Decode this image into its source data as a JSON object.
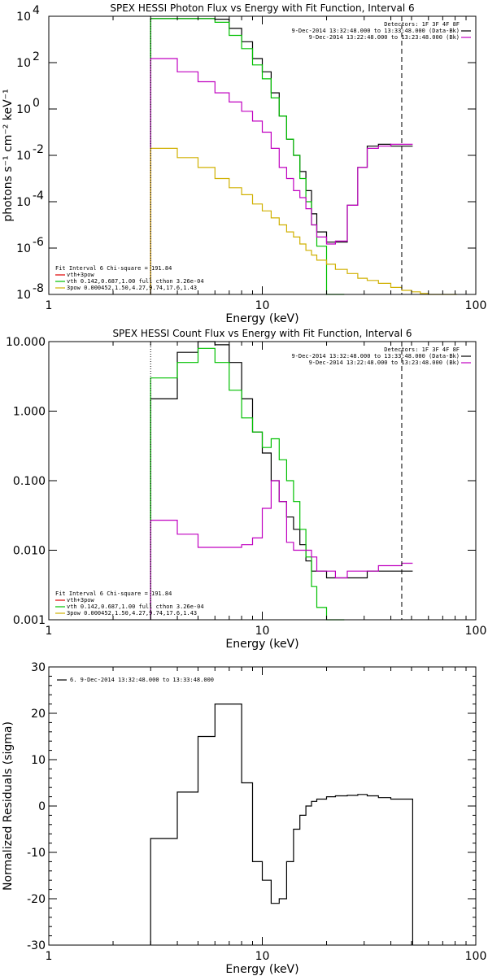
{
  "chart_data": [
    {
      "type": "line",
      "title": "SPEX HESSI Photon Flux vs Energy with Fit Function, Interval 6",
      "xlabel": "Energy (keV)",
      "ylabel": "photons s⁻¹ cm⁻² keV⁻¹",
      "xscale": "log",
      "yscale": "log",
      "xlim": [
        1,
        100
      ],
      "ylim": [
        1e-08,
        10000.0
      ],
      "xticks": [
        {
          "v": 1,
          "label": "1"
        },
        {
          "v": 10,
          "label": "10"
        },
        {
          "v": 100,
          "label": "100"
        }
      ],
      "yticks": [
        {
          "v": 1e-08,
          "base": "10",
          "exp": "-8"
        },
        {
          "v": 1e-06,
          "base": "10",
          "exp": "-6"
        },
        {
          "v": 0.0001,
          "base": "10",
          "exp": "-4"
        },
        {
          "v": 0.01,
          "base": "10",
          "exp": "-2"
        },
        {
          "v": 1,
          "base": "10",
          "exp": "0"
        },
        {
          "v": 100,
          "base": "10",
          "exp": "2"
        },
        {
          "v": 10000,
          "base": "10",
          "exp": "4"
        }
      ],
      "vlines": [
        {
          "x": 3,
          "style": "dotted",
          "color": "#000000"
        },
        {
          "x": 45,
          "style": "dashed",
          "color": "#000000"
        }
      ],
      "legend_topright": {
        "lines": [
          {
            "text": "Detectors: 1F 3F 4F 8F"
          },
          {
            "text": "9-Dec-2014 13:32:48.000 to 13:33:48.000 (Data-Bk)",
            "color": "#000000"
          },
          {
            "text": "9-Dec-2014 13:22:48.000 to 13:23:48.000 (Bk)",
            "color": "#c000c0"
          }
        ]
      },
      "legend_bottomleft": {
        "lines": [
          {
            "text": "Fit Interval  6    Chi-square = 191.84",
            "color": "#000000"
          },
          {
            "text": "vth+3pow",
            "color": "#e00000"
          },
          {
            "text": "vth 0.142,0.687,1.00  full cthon 3.26e-04",
            "color": "#00c000"
          },
          {
            "text": "3pow 0.000452,1.50,4.27,9.74,17.6,1.43",
            "color": "#d0b000"
          }
        ]
      },
      "series": [
        {
          "color": "#000000",
          "x": [
            3,
            4,
            5,
            6,
            7,
            8,
            9,
            10,
            11,
            12,
            13,
            14,
            15,
            16,
            17,
            18,
            20,
            22,
            25,
            28,
            31,
            35,
            40,
            45
          ],
          "values": [
            8000,
            8000,
            8000,
            7500,
            3000,
            800,
            150,
            40,
            5,
            0.5,
            0.05,
            0.01,
            0.002,
            0.0003,
            3e-05,
            5e-06,
            1.8e-06,
            1.8e-06,
            7e-05,
            0.003,
            0.025,
            0.03,
            0.025,
            0.025
          ]
        },
        {
          "color": "#00c000",
          "x": [
            3,
            4,
            5,
            6,
            7,
            8,
            9,
            10,
            11,
            12,
            13,
            14,
            15,
            16,
            17,
            18,
            20,
            22
          ],
          "values": [
            8000,
            8000,
            8000,
            5500,
            1500,
            400,
            80,
            20,
            3,
            0.5,
            0.05,
            0.01,
            0.001,
            0.0001,
            1e-05,
            1.2e-06,
            1e-08,
            1e-08
          ]
        },
        {
          "color": "#c000c0",
          "x": [
            3,
            4,
            5,
            6,
            7,
            8,
            9,
            10,
            11,
            12,
            13,
            14,
            15,
            16,
            17,
            18,
            20,
            22,
            25,
            28,
            31,
            35,
            40,
            45
          ],
          "values": [
            150,
            40,
            15,
            5,
            2,
            0.8,
            0.3,
            0.1,
            0.02,
            0.003,
            0.001,
            0.0003,
            0.00015,
            5e-05,
            1e-05,
            3e-06,
            1.5e-06,
            2e-06,
            7e-05,
            0.003,
            0.02,
            0.025,
            0.03,
            0.03
          ]
        },
        {
          "color": "#d0b000",
          "x": [
            3,
            4,
            5,
            6,
            7,
            8,
            9,
            10,
            11,
            12,
            13,
            14,
            15,
            16,
            17,
            18,
            20,
            22,
            25,
            28,
            31,
            35,
            40,
            45,
            50,
            55,
            60,
            70
          ],
          "values": [
            0.02,
            0.008,
            0.003,
            0.001,
            0.0004,
            0.0002,
            8e-05,
            4e-05,
            2e-05,
            1e-05,
            5e-06,
            3e-06,
            1.5e-06,
            8e-07,
            5e-07,
            3e-07,
            2e-07,
            1.2e-07,
            8e-08,
            5e-08,
            4e-08,
            3e-08,
            2e-08,
            1.5e-08,
            1.3e-08,
            1.1e-08,
            1e-08,
            1e-08
          ]
        }
      ]
    },
    {
      "type": "line",
      "title": "SPEX HESSI Count Flux vs Energy with Fit Function, Interval 6",
      "xlabel": "Energy (keV)",
      "ylabel": "",
      "xscale": "log",
      "yscale": "log",
      "xlim": [
        1,
        100
      ],
      "ylim": [
        0.001,
        10
      ],
      "xticks": [
        {
          "v": 1,
          "label": "1"
        },
        {
          "v": 10,
          "label": "10"
        },
        {
          "v": 100,
          "label": "100"
        }
      ],
      "yticks": [
        {
          "v": 0.001,
          "label": "0.001"
        },
        {
          "v": 0.01,
          "label": "0.010"
        },
        {
          "v": 0.1,
          "label": "0.100"
        },
        {
          "v": 1,
          "label": "1.000"
        },
        {
          "v": 10,
          "label": "10.000"
        }
      ],
      "vlines": [
        {
          "x": 3,
          "style": "dotted",
          "color": "#000000"
        },
        {
          "x": 45,
          "style": "dashed",
          "color": "#000000"
        }
      ],
      "legend_topright": {
        "lines": [
          {
            "text": "Detectors: 1F 3F 4F 8F"
          },
          {
            "text": "9-Dec-2014 13:32:48.000 to 13:33:48.000 (Data-Bk)",
            "color": "#000000"
          },
          {
            "text": "9-Dec-2014 13:22:48.000 to 13:23:48.000 (Bk)",
            "color": "#c000c0"
          }
        ]
      },
      "legend_bottomleft": {
        "lines": [
          {
            "text": "Fit Interval  6    Chi-square = 191.84",
            "color": "#000000"
          },
          {
            "text": "vth+3pow",
            "color": "#e00000"
          },
          {
            "text": "vth 0.142,0.687,1.00  full cthon 3.26e-04",
            "color": "#00c000"
          },
          {
            "text": "3pow 0.000452,1.50,4.27,9.74,17.6,1.43",
            "color": "#d0b000"
          }
        ]
      },
      "series": [
        {
          "color": "#000000",
          "x": [
            3,
            4,
            5,
            6,
            7,
            8,
            9,
            10,
            11,
            12,
            13,
            14,
            15,
            16,
            17,
            18,
            20,
            22,
            25,
            28,
            31,
            35,
            40,
            45
          ],
          "values": [
            1.5,
            7,
            10,
            9,
            5,
            1.5,
            0.5,
            0.25,
            0.1,
            0.05,
            0.03,
            0.02,
            0.012,
            0.007,
            0.005,
            0.005,
            0.004,
            0.004,
            0.004,
            0.004,
            0.005,
            0.005,
            0.005,
            0.005
          ]
        },
        {
          "color": "#00c000",
          "x": [
            3,
            4,
            5,
            6,
            7,
            8,
            9,
            10,
            11,
            12,
            13,
            14,
            15,
            16,
            17,
            18,
            20,
            22
          ],
          "values": [
            3,
            5,
            8,
            5,
            2,
            0.8,
            0.5,
            0.3,
            0.4,
            0.2,
            0.1,
            0.05,
            0.02,
            0.008,
            0.003,
            0.0015,
            0.001,
            0.001
          ]
        },
        {
          "color": "#c000c0",
          "x": [
            3,
            4,
            5,
            6,
            7,
            8,
            9,
            10,
            11,
            12,
            13,
            14,
            15,
            16,
            17,
            18,
            20,
            22,
            25,
            28,
            31,
            35,
            40,
            45
          ],
          "values": [
            0.027,
            0.017,
            0.011,
            0.011,
            0.011,
            0.012,
            0.015,
            0.04,
            0.1,
            0.05,
            0.013,
            0.01,
            0.01,
            0.01,
            0.008,
            0.005,
            0.005,
            0.004,
            0.005,
            0.005,
            0.005,
            0.006,
            0.006,
            0.0065
          ]
        }
      ]
    },
    {
      "type": "line",
      "title": "",
      "xlabel": "Energy (keV)",
      "ylabel": "Normalized Residuals (sigma)",
      "xscale": "log",
      "yscale": "linear",
      "xlim": [
        1,
        100
      ],
      "ylim": [
        -30,
        30
      ],
      "xticks": [
        {
          "v": 1,
          "label": "1"
        },
        {
          "v": 10,
          "label": "10"
        },
        {
          "v": 100,
          "label": "100"
        }
      ],
      "yticks": [
        {
          "v": -30,
          "label": "-30"
        },
        {
          "v": -20,
          "label": "-20"
        },
        {
          "v": -10,
          "label": "-10"
        },
        {
          "v": 0,
          "label": "0"
        },
        {
          "v": 10,
          "label": "10"
        },
        {
          "v": 20,
          "label": "20"
        },
        {
          "v": 30,
          "label": "30"
        }
      ],
      "vlines": [],
      "legend_topleft": {
        "lines": [
          {
            "text": "6.  9-Dec-2014 13:32:48.000 to 13:33:48.000",
            "color": "#000000"
          }
        ]
      },
      "series": [
        {
          "color": "#000000",
          "x": [
            3,
            4,
            5,
            6,
            7,
            8,
            9,
            10,
            11,
            12,
            13,
            14,
            15,
            16,
            17,
            18,
            20,
            22,
            25,
            28,
            31,
            35,
            40,
            45
          ],
          "values": [
            -7,
            3,
            15,
            22,
            22,
            5,
            -12,
            -16,
            -21,
            -20,
            -12,
            -5,
            -2,
            0,
            1,
            1.5,
            2,
            2.2,
            2.3,
            2.5,
            2.2,
            1.8,
            1.5,
            1.5
          ],
          "drop_to_bottom_at_ends": true
        }
      ]
    }
  ]
}
